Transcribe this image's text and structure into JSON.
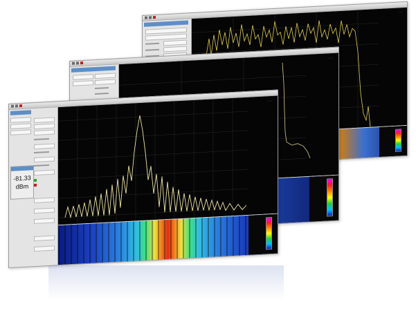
{
  "window_front": {
    "level_value": "-81.33",
    "level_unit": "dBm"
  },
  "colors": {
    "trace": "#f0e6a0",
    "trace_rear": "#e6d24a",
    "plot_bg": "#050505",
    "panel_blue": "#5d8ec8"
  },
  "icons": [
    "window-control-icon",
    "record-icon",
    "stop-icon"
  ]
}
